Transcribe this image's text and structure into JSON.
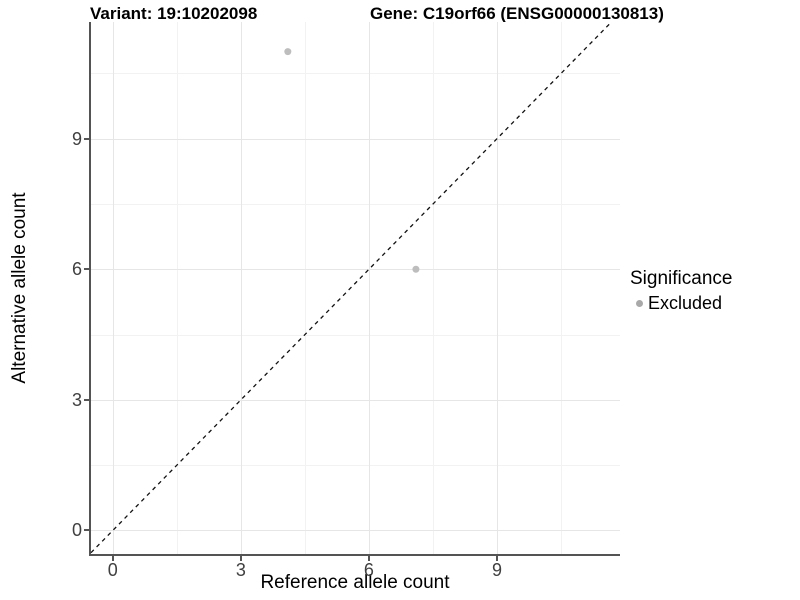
{
  "chart_data": {
    "type": "scatter",
    "title_left": "Variant: 19:10202098",
    "title_right": "Gene: C19orf66 (ENSG00000130813)",
    "xlabel": "Reference allele count",
    "ylabel": "Alternative allele count",
    "xlim": [
      -0.51,
      11.88
    ],
    "ylim": [
      -0.54,
      11.68
    ],
    "x_ticks": [
      0,
      3,
      6,
      9
    ],
    "y_ticks": [
      0,
      3,
      6,
      9
    ],
    "x_minor_gridlines": [
      1.5,
      4.5,
      7.5,
      10.5
    ],
    "y_minor_gridlines": [
      1.5,
      4.5,
      7.5,
      10.5
    ],
    "grid": "major+minor",
    "series": [
      {
        "name": "Excluded",
        "color": "#bdbdbd",
        "points": [
          {
            "x": 4.1,
            "y": 11.0
          },
          {
            "x": 7.1,
            "y": 6.0
          }
        ]
      }
    ],
    "identity_line": {
      "slope": 1,
      "intercept": 0,
      "style": "dashed",
      "color": "#111111"
    },
    "legend": {
      "title": "Significance",
      "position": "right",
      "items": [
        {
          "label": "Excluded",
          "color": "#a9a9a9"
        }
      ]
    }
  },
  "colors": {
    "background": "#ffffff",
    "grid_major": "#e6e6e6",
    "grid_minor": "#f2f2f2",
    "axis_line": "#545454",
    "tick_text": "#404040"
  }
}
